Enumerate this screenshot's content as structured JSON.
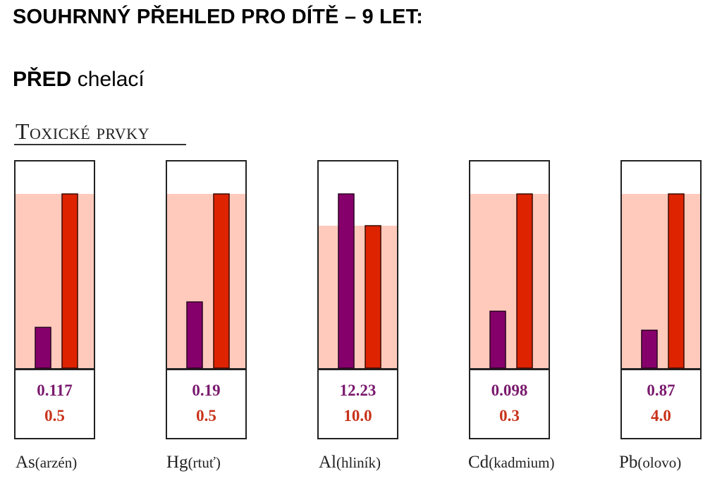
{
  "headline": "SOUHRNNÝ PŘEHLED PRO DÍTĚ – 9 LET:",
  "subhead": {
    "bold": "PŘED",
    "rest": " chelací"
  },
  "section_title": "Toxické prvky",
  "colors": {
    "measured": "#86006b",
    "limit": "#dd2300",
    "limit_zone": "#ffcabb",
    "frame": "#222222",
    "measured_text": "#7a1a6e",
    "limit_text": "#c8321a"
  },
  "chart_data": {
    "type": "bar",
    "title": "Toxické prvky",
    "series": [
      {
        "name": "",
        "values": [
          0.117,
          0.19,
          12.23,
          0.098,
          0.87
        ]
      },
      {
        "name": "",
        "values": [
          0.5,
          0.5,
          10.0,
          0.3,
          4.0
        ]
      }
    ],
    "value_labels": [
      [
        "0.117",
        "0.5"
      ],
      [
        "0.19",
        "0.5"
      ],
      [
        "12.23",
        "10.0"
      ],
      [
        "0.098",
        "0.3"
      ],
      [
        "0.87",
        "4.0"
      ]
    ],
    "categories": [
      {
        "symbol": "As",
        "name": "(arzén)"
      },
      {
        "symbol": "Hg",
        "name": "(rtuť)"
      },
      {
        "symbol": "Al",
        "name": "(hliník)"
      },
      {
        "symbol": "Cd",
        "name": "(kadmium)"
      },
      {
        "symbol": "Pb",
        "name": "(olovo)"
      }
    ],
    "xlabel": "",
    "ylabel": "",
    "grid": false,
    "legend": "none"
  }
}
